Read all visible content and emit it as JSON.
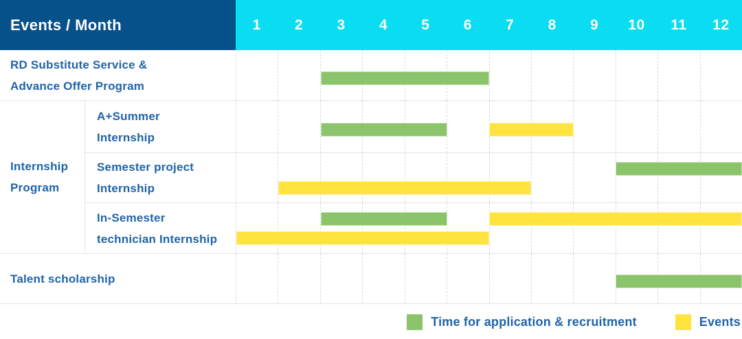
{
  "colors": {
    "header_bg": "#07518A",
    "months_bg": "#0ADCF2",
    "text_blue": "#1F63A8",
    "green": "#8BC46A",
    "yellow": "#FFE33F",
    "grid": "#E5E5E5",
    "grid_dash": "#D9D9D9"
  },
  "header": {
    "title": "Events / Month",
    "months": [
      "1",
      "2",
      "3",
      "4",
      "5",
      "6",
      "7",
      "8",
      "9",
      "10",
      "11",
      "12"
    ]
  },
  "sections": [
    {
      "type": "row",
      "name": "rd-substitute",
      "label_lines": [
        "RD Substitute Service &",
        "Advance Offer Program"
      ],
      "bars": [
        {
          "color_key": "green",
          "start_month": 3,
          "end_month": 6,
          "line": "center"
        }
      ]
    },
    {
      "type": "group",
      "name": "internship-program",
      "label_lines": [
        "Internship",
        "Program"
      ],
      "rows": [
        {
          "name": "a-plus-summer-internship",
          "label_lines": [
            "A+Summer",
            "Internship"
          ],
          "bars": [
            {
              "color_key": "green",
              "start_month": 3,
              "end_month": 5,
              "line": "center"
            },
            {
              "color_key": "yellow",
              "start_month": 7,
              "end_month": 8,
              "line": "center"
            }
          ]
        },
        {
          "name": "semester-project-internship",
          "label_lines": [
            "Semester project",
            "Internship"
          ],
          "bars": [
            {
              "color_key": "green",
              "start_month": 10,
              "end_month": 12,
              "line": 1
            },
            {
              "color_key": "yellow",
              "start_month": 2,
              "end_month": 7,
              "line": 2
            }
          ]
        },
        {
          "name": "in-semester-technician-internship",
          "label_lines": [
            "In-Semester",
            "technician Internship"
          ],
          "bars": [
            {
              "color_key": "green",
              "start_month": 3,
              "end_month": 5,
              "line": 1
            },
            {
              "color_key": "yellow",
              "start_month": 7,
              "end_month": 12,
              "line": 1
            },
            {
              "color_key": "yellow",
              "start_month": 1,
              "end_month": 6,
              "line": 2
            }
          ]
        }
      ]
    },
    {
      "type": "row",
      "name": "talent-scholarship",
      "label_lines": [
        "Talent scholarship"
      ],
      "bars": [
        {
          "color_key": "green",
          "start_month": 10,
          "end_month": 12,
          "line": "center"
        }
      ]
    }
  ],
  "legend": {
    "items": [
      {
        "color_key": "green",
        "label": "Time for application & recruitment"
      },
      {
        "color_key": "yellow",
        "label": "Events"
      }
    ]
  },
  "chart_data": {
    "type": "gantt",
    "title": "Events / Month",
    "x_axis": {
      "unit": "month",
      "ticks": [
        1,
        2,
        3,
        4,
        5,
        6,
        7,
        8,
        9,
        10,
        11,
        12
      ]
    },
    "legend": [
      {
        "name": "Time for application & recruitment",
        "color": "#8BC46A"
      },
      {
        "name": "Events",
        "color": "#FFE33F"
      }
    ],
    "tasks": [
      {
        "event": "RD Substitute Service & Advance Offer Program",
        "group": null,
        "bars": [
          {
            "series": "Time for application & recruitment",
            "start_month": 3,
            "end_month": 6
          }
        ]
      },
      {
        "event": "A+Summer Internship",
        "group": "Internship Program",
        "bars": [
          {
            "series": "Time for application & recruitment",
            "start_month": 3,
            "end_month": 5
          },
          {
            "series": "Events",
            "start_month": 7,
            "end_month": 8
          }
        ]
      },
      {
        "event": "Semester project Internship",
        "group": "Internship Program",
        "bars": [
          {
            "series": "Time for application & recruitment",
            "start_month": 10,
            "end_month": 12
          },
          {
            "series": "Events",
            "start_month": 2,
            "end_month": 7
          }
        ]
      },
      {
        "event": "In-Semester technician Internship",
        "group": "Internship Program",
        "bars": [
          {
            "series": "Time for application & recruitment",
            "start_month": 3,
            "end_month": 5
          },
          {
            "series": "Events",
            "start_month": 7,
            "end_month": 12
          },
          {
            "series": "Events",
            "start_month": 1,
            "end_month": 6
          }
        ]
      },
      {
        "event": "Talent scholarship",
        "group": null,
        "bars": [
          {
            "series": "Time for application & recruitment",
            "start_month": 10,
            "end_month": 12
          }
        ]
      }
    ]
  }
}
